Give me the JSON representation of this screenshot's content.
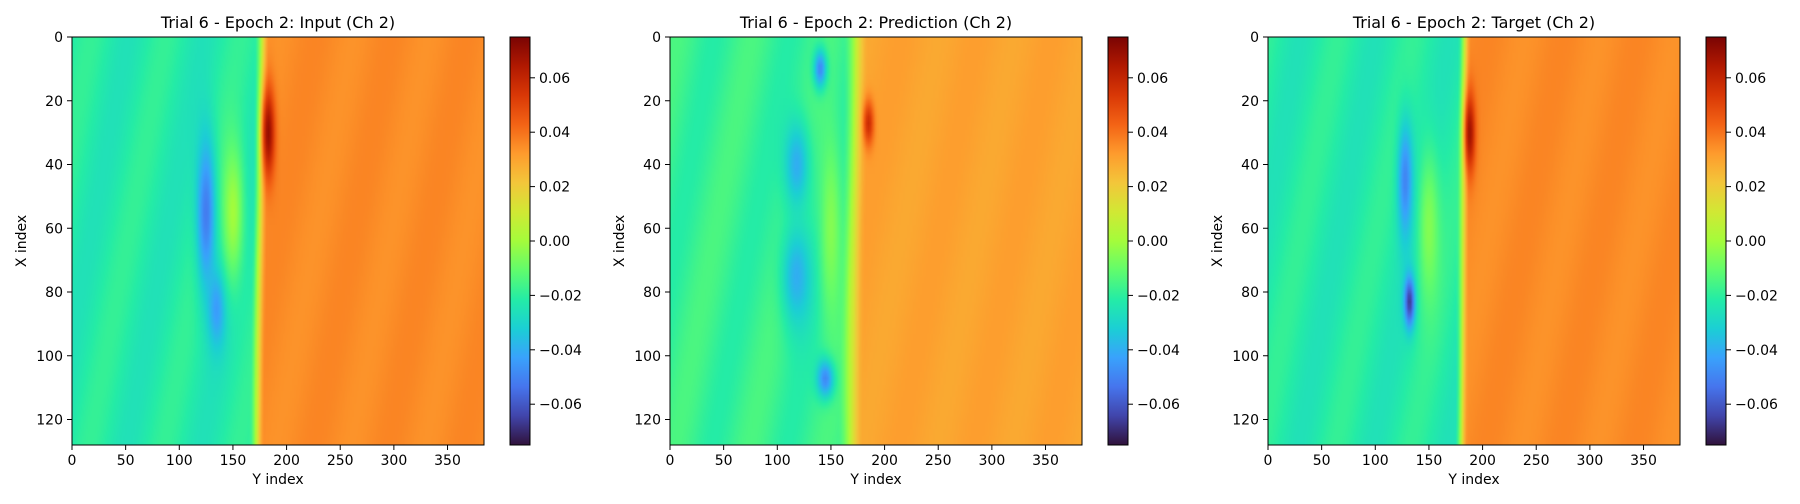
{
  "figure": {
    "colormap": "turbo",
    "colormap_stops": [
      "#30123b",
      "#4145ab",
      "#4675ed",
      "#39a2fc",
      "#1bcfd4",
      "#24eca6",
      "#61fc6c",
      "#a4fc3b",
      "#d1e834",
      "#f3c63a",
      "#fe9b2d",
      "#f36315",
      "#d93806",
      "#b11901",
      "#7a0403"
    ],
    "frame_color": "#000000"
  },
  "chart_data": [
    {
      "type": "heatmap",
      "title": "Trial 6 - Epoch 2: Input (Ch 2)",
      "xlabel": "Y index",
      "ylabel": "X index",
      "xlim": [
        0,
        384
      ],
      "ylim": [
        128,
        0
      ],
      "xticks": [
        0,
        50,
        100,
        150,
        200,
        250,
        300,
        350
      ],
      "yticks": [
        0,
        20,
        40,
        60,
        80,
        100,
        120
      ],
      "colorbar": {
        "range": [
          -0.075,
          0.075
        ],
        "ticks": [
          "0.06",
          "0.04",
          "0.02",
          "0.00",
          "−0.02",
          "−0.04",
          "−0.06"
        ],
        "tick_values": [
          0.06,
          0.04,
          0.02,
          0.0,
          -0.02,
          -0.04,
          -0.06
        ]
      },
      "field": {
        "background_left": -0.022,
        "background_right": 0.035,
        "front_top_y": 177,
        "front_bottom_y": 172,
        "transition_width": 7,
        "features": [
          {
            "x_index": 30,
            "y_index": 183,
            "value": 0.07,
            "x_radius": 14,
            "y_radius": 6
          },
          {
            "x_index": 55,
            "y_index": 125,
            "value": -0.052,
            "x_radius": 24,
            "y_radius": 9
          },
          {
            "x_index": 85,
            "y_index": 135,
            "value": -0.045,
            "x_radius": 12,
            "y_radius": 8
          },
          {
            "x_index": 55,
            "y_index": 150,
            "value": 0.0,
            "x_radius": 22,
            "y_radius": 10
          }
        ]
      }
    },
    {
      "type": "heatmap",
      "title": "Trial 6 - Epoch 2: Prediction (Ch 2)",
      "xlabel": "Y index",
      "ylabel": "X index",
      "xlim": [
        0,
        384
      ],
      "ylim": [
        128,
        0
      ],
      "xticks": [
        0,
        50,
        100,
        150,
        200,
        250,
        300,
        350
      ],
      "yticks": [
        0,
        20,
        40,
        60,
        80,
        100,
        120
      ],
      "colorbar": {
        "range": [
          -0.075,
          0.075
        ],
        "ticks": [
          "0.06",
          "0.04",
          "0.02",
          "0.00",
          "−0.02",
          "−0.04",
          "−0.06"
        ],
        "tick_values": [
          0.06,
          0.04,
          0.02,
          0.0,
          -0.02,
          -0.04,
          -0.06
        ]
      },
      "field": {
        "background_left": -0.018,
        "background_right": 0.03,
        "front_top_y": 173,
        "front_bottom_y": 168,
        "transition_width": 12,
        "features": [
          {
            "x_index": 27,
            "y_index": 185,
            "value": 0.058,
            "x_radius": 7,
            "y_radius": 5
          },
          {
            "x_index": 10,
            "y_index": 140,
            "value": -0.05,
            "x_radius": 6,
            "y_radius": 6
          },
          {
            "x_index": 40,
            "y_index": 118,
            "value": -0.04,
            "x_radius": 14,
            "y_radius": 12
          },
          {
            "x_index": 75,
            "y_index": 118,
            "value": -0.04,
            "x_radius": 16,
            "y_radius": 14
          },
          {
            "x_index": 107,
            "y_index": 145,
            "value": -0.052,
            "x_radius": 6,
            "y_radius": 8
          },
          {
            "x_index": 60,
            "y_index": 150,
            "value": -0.005,
            "x_radius": 30,
            "y_radius": 10
          }
        ]
      }
    },
    {
      "type": "heatmap",
      "title": "Trial 6 - Epoch 2: Target (Ch 2)",
      "xlabel": "Y index",
      "ylabel": "X index",
      "xlim": [
        0,
        384
      ],
      "ylim": [
        128,
        0
      ],
      "xticks": [
        0,
        50,
        100,
        150,
        200,
        250,
        300,
        350
      ],
      "yticks": [
        0,
        20,
        40,
        60,
        80,
        100,
        120
      ],
      "colorbar": {
        "range": [
          -0.075,
          0.075
        ],
        "ticks": [
          "0.06",
          "0.04",
          "0.02",
          "0.00",
          "−0.02",
          "−0.04",
          "−0.06"
        ],
        "tick_values": [
          0.06,
          0.04,
          0.02,
          0.0,
          -0.02,
          -0.04,
          -0.06
        ]
      },
      "field": {
        "background_left": -0.022,
        "background_right": 0.035,
        "front_top_y": 183,
        "front_bottom_y": 180,
        "transition_width": 6,
        "features": [
          {
            "x_index": 30,
            "y_index": 188,
            "value": 0.068,
            "x_radius": 12,
            "y_radius": 5
          },
          {
            "x_index": 45,
            "y_index": 128,
            "value": -0.05,
            "x_radius": 18,
            "y_radius": 7
          },
          {
            "x_index": 83,
            "y_index": 132,
            "value": -0.068,
            "x_radius": 8,
            "y_radius": 5
          },
          {
            "x_index": 60,
            "y_index": 150,
            "value": -0.005,
            "x_radius": 25,
            "y_radius": 10
          }
        ]
      }
    }
  ]
}
